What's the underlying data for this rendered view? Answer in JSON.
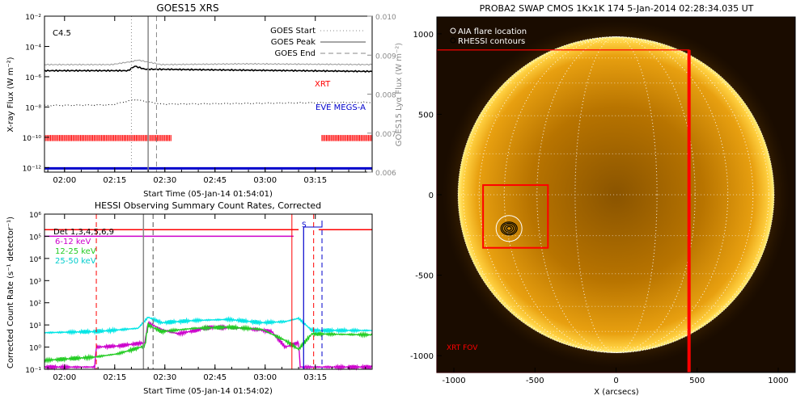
{
  "colors": {
    "axis": "#000000",
    "grey": "#888888",
    "red": "#ff0000",
    "blue": "#0000cc",
    "magenta": "#cc00cc",
    "green": "#22cc22",
    "cyan": "#00e5e5",
    "sun": "#f2a20a"
  },
  "chart_data": [
    {
      "type": "line",
      "title": "GOES15 XRS",
      "xlabel": "Start Time (05-Jan-14 01:54:01)",
      "ylabel": "X-ray Flux (W m⁻²)",
      "ylabel_right": "GOES15 Lyα Flux (W m⁻²)",
      "x_ticks": [
        "02:00",
        "02:15",
        "02:30",
        "02:45",
        "03:00",
        "03:15"
      ],
      "y_ticks": [
        "10⁻²",
        "10⁻⁴",
        "10⁻⁶",
        "10⁻⁸",
        "10⁻¹⁰",
        "10⁻¹²"
      ],
      "y_ticks_right": [
        "0.010",
        "0.009",
        "0.008",
        "0.007",
        "0.006"
      ],
      "ylim_log10": [
        -12.3,
        -2
      ],
      "ylim_right": [
        0.006,
        0.01
      ],
      "x_minutes_from_start": [
        0,
        98
      ],
      "annotations": {
        "class": "C4.5",
        "xrt": "XRT",
        "eve": "EVE MEGS-A"
      },
      "legend": [
        "GOES Start",
        "GOES Peak",
        "GOES End"
      ],
      "legend_position": "top-right",
      "series": [
        {
          "name": "",
          "values": [
            [
              0,
              -5.2
            ],
            [
              20,
              -5.2
            ],
            [
              26,
              -5.0
            ],
            [
              28,
              -4.9
            ],
            [
              35,
              -5.2
            ],
            [
              60,
              -5.15
            ],
            [
              98,
              -5.2
            ]
          ]
        },
        {
          "name": "",
          "values": [
            [
              0,
              -5.6
            ],
            [
              25,
              -5.6
            ],
            [
              27,
              -5.3
            ],
            [
              30,
              -5.5
            ],
            [
              98,
              -5.65
            ]
          ]
        },
        {
          "name": "",
          "values": [
            [
              0,
              -7.9
            ],
            [
              20,
              -7.85
            ],
            [
              27,
              -7.5
            ],
            [
              35,
              -7.8
            ],
            [
              98,
              -7.7
            ]
          ]
        }
      ],
      "vlines_minutes": {
        "start": 26,
        "peak": 31,
        "end": 33.5
      },
      "xrt_coverage_minutes": [
        [
          0,
          38
        ],
        [
          83,
          98
        ]
      ],
      "eve_coverage_minutes": [
        [
          0,
          98
        ]
      ]
    },
    {
      "type": "line",
      "title": "HESSI Observing Summary Count Rates, Corrected",
      "xlabel": "Start Time (05-Jan-14 01:54:02)",
      "ylabel": "Corrected Count Rate (s⁻¹ detector⁻¹)",
      "x_ticks": [
        "02:00",
        "02:15",
        "02:30",
        "02:45",
        "03:00",
        "03:15"
      ],
      "y_ticks": [
        "10⁶",
        "10⁵",
        "10⁴",
        "10³",
        "10²",
        "10¹",
        "10⁰",
        "10⁻¹"
      ],
      "ylim_log10": [
        -1,
        6
      ],
      "x_minutes_from_start": [
        0,
        98
      ],
      "legend": [
        "Det 1,3,4,5,6,9",
        "6-12 keV",
        "12-25 keV",
        "25-50 keV"
      ],
      "legend_position": "top-left",
      "flags": {
        "s": "S"
      },
      "series": [
        {
          "name": "6-12 keV",
          "values": [
            [
              0,
              -0.9
            ],
            [
              15,
              -0.9
            ],
            [
              15.5,
              0.0
            ],
            [
              22,
              0.05
            ],
            [
              30,
              0.2
            ],
            [
              31,
              1.1
            ],
            [
              35,
              0.8
            ],
            [
              40,
              0.6
            ],
            [
              50,
              0.9
            ],
            [
              60,
              0.85
            ],
            [
              68,
              0.7
            ],
            [
              72,
              0.0
            ],
            [
              76,
              0.2
            ],
            [
              76.5,
              -0.9
            ],
            [
              98,
              -0.9
            ]
          ]
        },
        {
          "name": "12-25 keV",
          "values": [
            [
              0,
              -0.6
            ],
            [
              15,
              -0.45
            ],
            [
              22,
              -0.3
            ],
            [
              30,
              0.05
            ],
            [
              31,
              1.0
            ],
            [
              35,
              0.7
            ],
            [
              45,
              0.85
            ],
            [
              55,
              0.9
            ],
            [
              65,
              0.8
            ],
            [
              72,
              0.3
            ],
            [
              76,
              -0.1
            ],
            [
              80,
              0.6
            ],
            [
              98,
              0.55
            ]
          ]
        },
        {
          "name": "25-50 keV",
          "values": [
            [
              0,
              0.65
            ],
            [
              15,
              0.7
            ],
            [
              20,
              0.75
            ],
            [
              28,
              0.85
            ],
            [
              31,
              1.35
            ],
            [
              35,
              1.1
            ],
            [
              45,
              1.2
            ],
            [
              55,
              1.25
            ],
            [
              65,
              1.1
            ],
            [
              72,
              1.15
            ],
            [
              76,
              1.3
            ],
            [
              80,
              0.75
            ],
            [
              98,
              0.75
            ]
          ]
        }
      ],
      "attenuator_level_log10": 5.2,
      "vlines_minutes": {
        "red_dash": [
          15.5,
          80.5
        ],
        "grey_solid": 29.6,
        "grey_dash": 32.5,
        "blue_solid": 77.5,
        "blue_dash": 83
      }
    },
    {
      "type": "heatmap",
      "title": "PROBA2 SWAP CMOS 1Kx1K 174   5-Jan-2014 02:28:34.035 UT",
      "xlabel": "X (arcsecs)",
      "ylabel": "",
      "x_ticks": [
        "-1000",
        "-500",
        "0",
        "500",
        "1000"
      ],
      "y_ticks": [
        "1000",
        "500",
        "0",
        "-500",
        "-1000"
      ],
      "xlim": [
        -1105,
        1105
      ],
      "ylim": [
        -1105,
        1105
      ],
      "legend": [
        "AIA flare location",
        "RHESSI contours"
      ],
      "legend_position": "top-left",
      "fov_label": "XRT FOV",
      "sun_radius_arcsec": 975,
      "fov_box_arcsec": [
        -1105,
        -1105,
        450,
        900
      ],
      "flare_box_arcsec": [
        -820,
        -330,
        -420,
        60
      ],
      "flare_location_arcsec": [
        -660,
        -210
      ]
    }
  ]
}
